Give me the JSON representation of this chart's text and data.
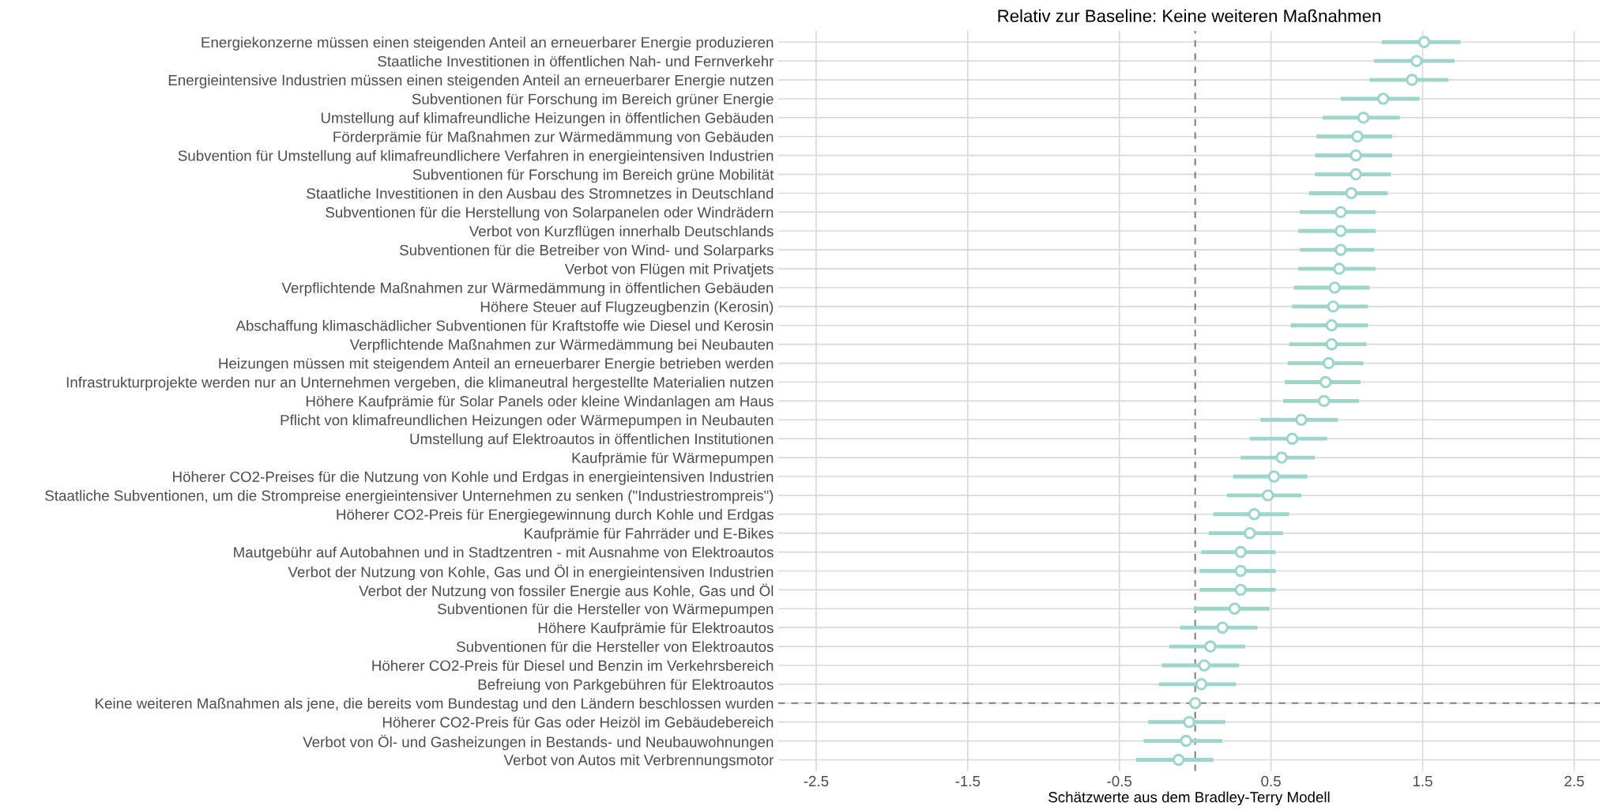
{
  "chart_data": {
    "type": "scatter",
    "orientation": "horizontal",
    "title": "Relativ zur Baseline: Keine weiteren Maßnahmen",
    "xlabel": "Schätzwerte aus dem Bradley-Terry Modell",
    "categories": [
      "Energiekonzerne müssen einen steigenden Anteil an erneuerbarer Energie produzieren",
      "Staatliche Investitionen in öffentlichen Nah- und Fernverkehr",
      "Energieintensive Industrien müssen einen steigenden Anteil an erneuerbarer Energie nutzen",
      "Subventionen für Forschung im Bereich grüner Energie",
      "Umstellung auf klimafreundliche Heizungen in öffentlichen Gebäuden",
      "Förderprämie für Maßnahmen zur Wärmedämmung von Gebäuden",
      "Subvention für Umstellung auf klimafreundlichere Verfahren in energieintensiven Industrien",
      "Subventionen für Forschung im Bereich grüne Mobilität",
      "Staatliche Investitionen in den Ausbau des Stromnetzes in Deutschland",
      "Subventionen für die Herstellung von Solarpanelen oder Windrädern",
      "Verbot von Kurzflügen innerhalb Deutschlands",
      "Subventionen für die Betreiber von Wind- und Solarparks",
      "Verbot von Flügen mit Privatjets",
      "Verpflichtende Maßnahmen zur Wärmedämmung in öffentlichen Gebäuden",
      "Höhere Steuer auf Flugzeugbenzin (Kerosin)",
      "Abschaffung klimaschädlicher Subventionen für Kraftstoffe wie Diesel und Kerosin",
      "Verpflichtende Maßnahmen zur Wärmedämmung bei Neubauten",
      "Heizungen müssen mit steigendem Anteil an erneuerbarer Energie betrieben werden",
      "Infrastrukturprojekte werden nur an Unternehmen vergeben, die klimaneutral hergestellte Materialien nutzen",
      "Höhere Kaufprämie für Solar Panels oder kleine Windanlagen am Haus",
      "Pflicht von klimafreundlichen Heizungen oder Wärmepumpen in Neubauten",
      "Umstellung auf Elektroautos in öffentlichen Institutionen",
      "Kaufprämie für Wärmepumpen",
      "Höherer CO2-Preises für die Nutzung von Kohle und Erdgas in energieintensiven Industrien",
      "Staatliche Subventionen, um die Strompreise energieintensiver Unternehmen zu senken (\"Industriestrompreis\")",
      "Höherer CO2-Preis für Energiegewinnung durch Kohle und Erdgas",
      "Kaufprämie für Fahrräder und E-Bikes",
      "Mautgebühr auf Autobahnen und in Stadtzentren - mit Ausnahme von Elektroautos",
      "Verbot der Nutzung von Kohle, Gas und Öl in energieintensiven Industrien",
      "Verbot der Nutzung von fossiler Energie aus Kohle, Gas und Öl",
      "Subventionen für die Hersteller von Wärmepumpen",
      "Höhere Kaufprämie für Elektroautos",
      "Subventionen für die Hersteller von Elektroautos",
      "Höherer CO2-Preis für Diesel und Benzin im Verkehrsbereich",
      "Befreiung von Parkgebühren für Elektroautos",
      "Keine weiteren Maßnahmen als jene, die bereits vom Bundestag und den Ländern beschlossen wurden",
      "Höherer CO2-Preis für Gas oder Heizöl im Gebäudebereich",
      "Verbot von Öl- und Gasheizungen in Bestands- und Neubauwohnungen",
      "Verbot von Autos mit Verbrennungsmotor"
    ],
    "values": [
      1.51,
      1.46,
      1.43,
      1.24,
      1.11,
      1.07,
      1.06,
      1.06,
      1.03,
      0.96,
      0.96,
      0.96,
      0.95,
      0.92,
      0.91,
      0.9,
      0.9,
      0.88,
      0.86,
      0.85,
      0.7,
      0.64,
      0.57,
      0.52,
      0.48,
      0.39,
      0.36,
      0.3,
      0.3,
      0.3,
      0.26,
      0.18,
      0.1,
      0.06,
      0.04,
      0.0,
      -0.04,
      -0.06,
      -0.11
    ],
    "errors": [
      [
        1.23,
        1.75
      ],
      [
        1.18,
        1.71
      ],
      [
        1.15,
        1.67
      ],
      [
        0.96,
        1.48
      ],
      [
        0.84,
        1.35
      ],
      [
        0.8,
        1.3
      ],
      [
        0.79,
        1.3
      ],
      [
        0.79,
        1.29
      ],
      [
        0.75,
        1.27
      ],
      [
        0.69,
        1.19
      ],
      [
        0.68,
        1.19
      ],
      [
        0.69,
        1.18
      ],
      [
        0.68,
        1.19
      ],
      [
        0.65,
        1.15
      ],
      [
        0.64,
        1.14
      ],
      [
        0.63,
        1.14
      ],
      [
        0.62,
        1.13
      ],
      [
        0.61,
        1.11
      ],
      [
        0.59,
        1.09
      ],
      [
        0.58,
        1.08
      ],
      [
        0.43,
        0.94
      ],
      [
        0.36,
        0.87
      ],
      [
        0.3,
        0.79
      ],
      [
        0.25,
        0.74
      ],
      [
        0.21,
        0.7
      ],
      [
        0.12,
        0.62
      ],
      [
        0.09,
        0.58
      ],
      [
        0.04,
        0.53
      ],
      [
        0.03,
        0.53
      ],
      [
        0.03,
        0.53
      ],
      [
        -0.01,
        0.49
      ],
      [
        -0.1,
        0.41
      ],
      [
        -0.17,
        0.33
      ],
      [
        -0.22,
        0.29
      ],
      [
        -0.24,
        0.27
      ],
      null,
      [
        -0.31,
        0.2
      ],
      [
        -0.34,
        0.18
      ],
      [
        -0.39,
        0.12
      ]
    ],
    "color": "#9dd5cb",
    "marker": "circle",
    "xlim": [
      -2.75,
      2.67
    ],
    "xticks": [
      -2.5,
      -1.5,
      -0.5,
      0.5,
      1.5,
      2.5
    ],
    "ref_lines": [
      {
        "axis": "x",
        "value": 0,
        "color": "#7f7f7f",
        "line_style": "dashed"
      },
      {
        "axis": "y",
        "value": "Keine weiteren Maßnahmen als jene, die bereits vom Bundestag und den Ländern beschlossen wurden",
        "color": "#7f7f7f",
        "line_style": "dashed"
      }
    ],
    "grid": true
  }
}
